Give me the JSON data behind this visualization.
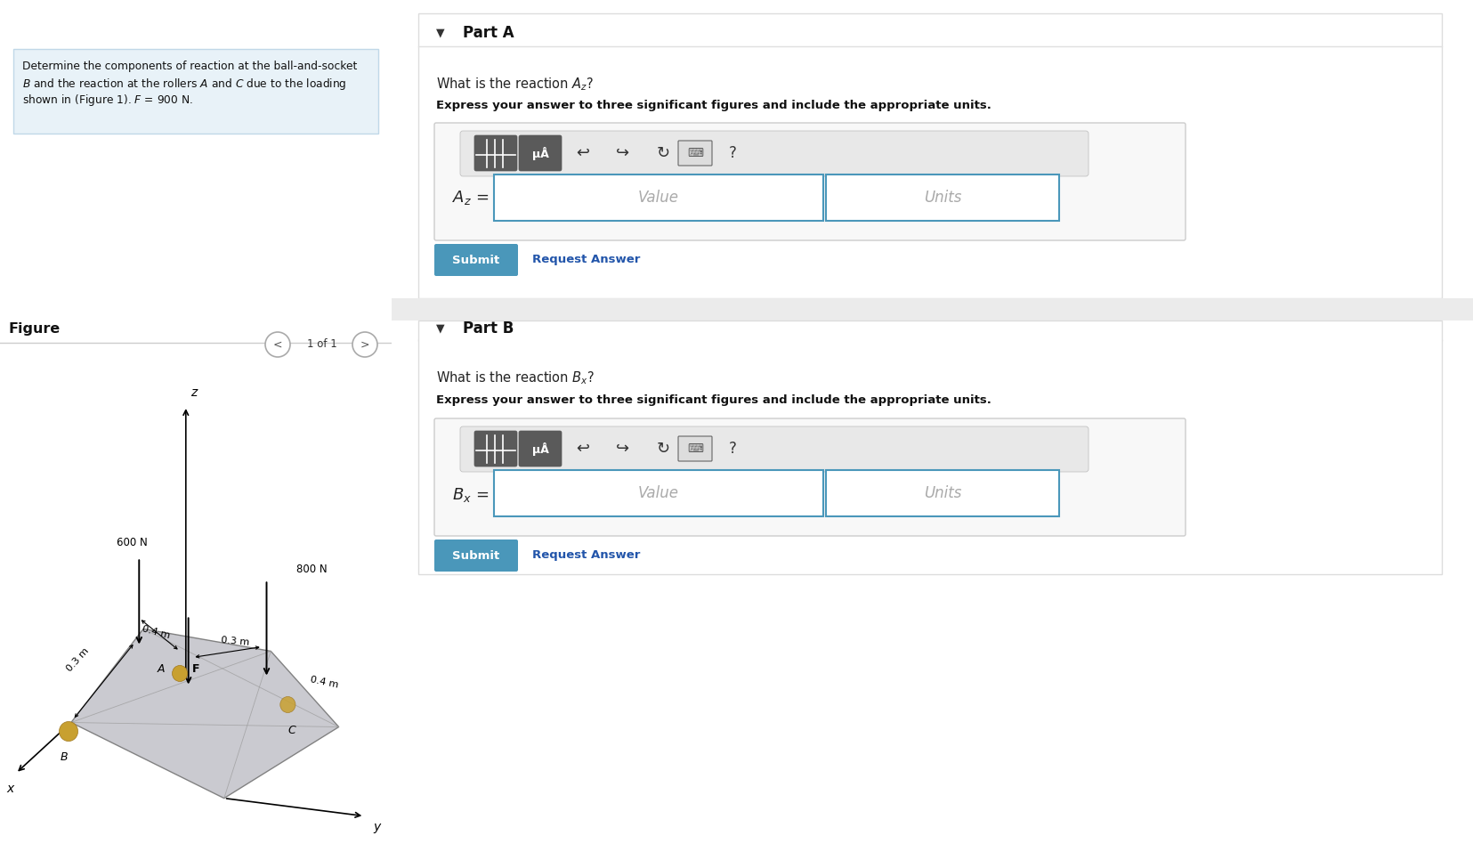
{
  "bg_color": "#ffffff",
  "left_panel_bg": "#ffffff",
  "right_panel_bg": "#f5f5f5",
  "problem_box_bg": "#e8f2f8",
  "problem_box_border": "#c0d8e8",
  "figure_label": "Figure",
  "nav_text": "1 of 1",
  "part_a_label": "Part A",
  "part_a_question": "What is the reaction $A_z$?",
  "part_a_instruction": "Express your answer to three significant figures and include the appropriate units.",
  "part_a_var": "$A_z$ =",
  "part_b_label": "Part B",
  "part_b_question": "What is the reaction $B_x$?",
  "part_b_instruction": "Express your answer to three significant figures and include the appropriate units.",
  "part_b_var": "$B_x$ =",
  "submit_btn_color": "#4a97ba",
  "submit_text_color": "#ffffff",
  "request_answer_color": "#2255aa",
  "separator_color": "#cccccc",
  "input_border_color": "#4a97ba",
  "toolbar_bg": "#e0e0e0",
  "divider_color": "#e0e0e0",
  "panel_divider_color": "#cccccc",
  "part_section_bg": "#f0f0f0",
  "input_container_bg": "#f5f5f5",
  "input_container_border": "#cccccc"
}
